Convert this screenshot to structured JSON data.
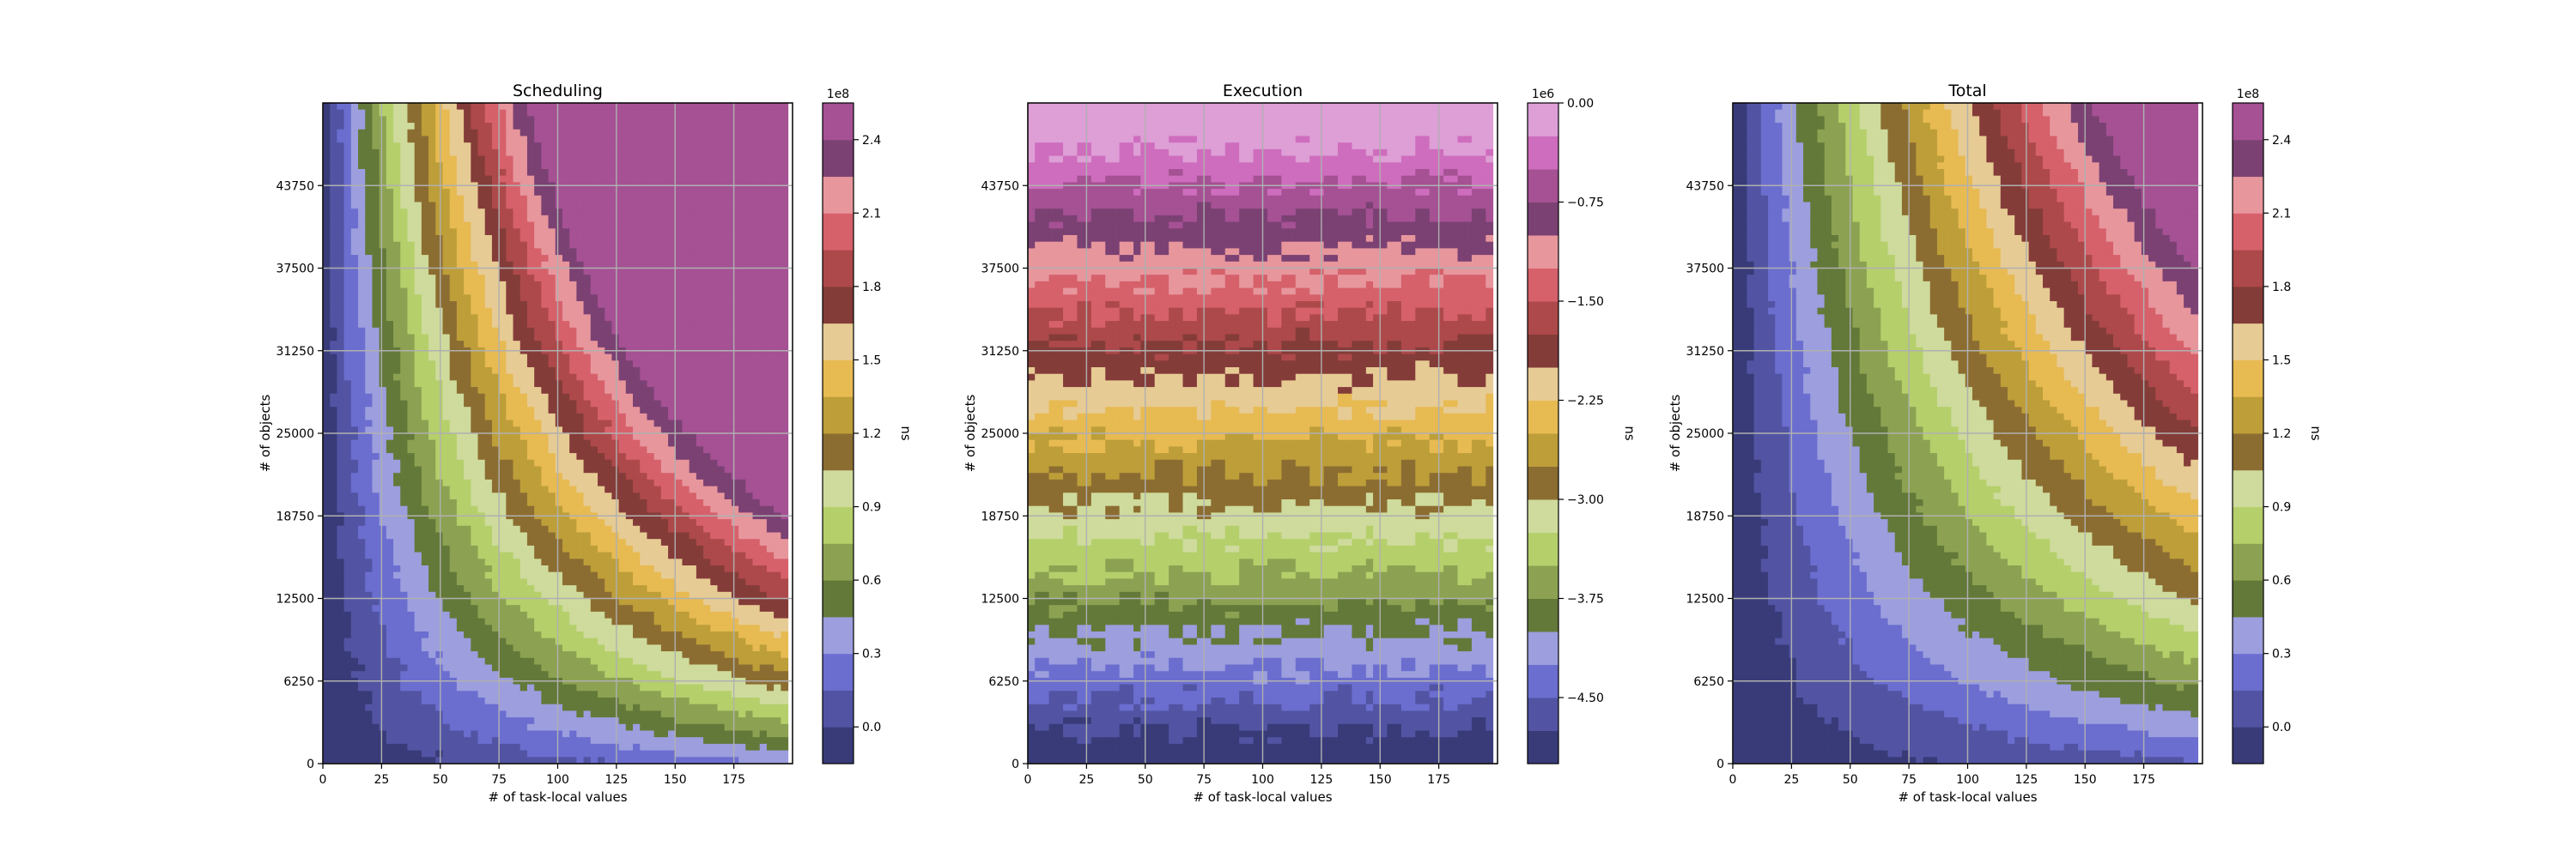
{
  "chart_data": [
    {
      "type": "heatmap",
      "subtype": "filled-contour",
      "title": "Scheduling",
      "xlabel": "# of task-local values",
      "ylabel": "# of objects",
      "xlim": [
        0,
        200
      ],
      "ylim": [
        0,
        50000
      ],
      "x_ticks": [
        0,
        25,
        50,
        75,
        100,
        125,
        150,
        175
      ],
      "x_tick_labels": [
        "0",
        "25",
        "50",
        "75",
        "100",
        "125",
        "150",
        "175"
      ],
      "y_ticks": [
        0,
        6250,
        12500,
        18750,
        25000,
        31250,
        37500,
        43750
      ],
      "y_tick_labels": [
        "0",
        "6250",
        "12500",
        "18750",
        "25000",
        "31250",
        "37500",
        "43750"
      ],
      "grid": true,
      "pattern": "diagonal",
      "colorbar": {
        "label": "ns",
        "offset_text": "1e8",
        "levels": [
          -0.15,
          0,
          0.15,
          0.3,
          0.45,
          0.6,
          0.75,
          0.9,
          1.05,
          1.2,
          1.35,
          1.5,
          1.65,
          1.8,
          1.95,
          2.1,
          2.25,
          2.4,
          2.55
        ],
        "ticks": [
          0.0,
          0.3,
          0.6,
          0.9,
          1.2,
          1.5,
          1.8,
          2.1,
          2.4
        ],
        "tick_labels": [
          "0.0",
          "0.3",
          "0.6",
          "0.9",
          "1.2",
          "1.5",
          "1.8",
          "2.1",
          "2.4"
        ]
      }
    },
    {
      "type": "heatmap",
      "subtype": "filled-contour",
      "title": "Execution",
      "xlabel": "# of task-local values",
      "ylabel": "# of objects",
      "xlim": [
        0,
        200
      ],
      "ylim": [
        0,
        50000
      ],
      "x_ticks": [
        0,
        25,
        50,
        75,
        100,
        125,
        150,
        175
      ],
      "x_tick_labels": [
        "0",
        "25",
        "50",
        "75",
        "100",
        "125",
        "150",
        "175"
      ],
      "y_ticks": [
        0,
        6250,
        12500,
        18750,
        25000,
        31250,
        37500,
        43750
      ],
      "y_tick_labels": [
        "0",
        "6250",
        "12500",
        "18750",
        "25000",
        "31250",
        "37500",
        "43750"
      ],
      "grid": true,
      "pattern": "horizontal",
      "colorbar": {
        "label": "ns",
        "offset_text": "1e6",
        "levels": [
          -5.0,
          -4.75,
          -4.5,
          -4.25,
          -4.0,
          -3.75,
          -3.5,
          -3.25,
          -3.0,
          -2.75,
          -2.5,
          -2.25,
          -2.0,
          -1.75,
          -1.5,
          -1.25,
          -1.0,
          -0.75,
          -0.5,
          -0.25,
          0.0
        ],
        "ticks": [
          -4.5,
          -3.75,
          -3.0,
          -2.25,
          -1.5,
          -0.75,
          0.0
        ],
        "tick_labels": [
          "−4.50",
          "−3.75",
          "−3.00",
          "−2.25",
          "−1.50",
          "−0.75",
          "0.00"
        ]
      }
    },
    {
      "type": "heatmap",
      "subtype": "filled-contour",
      "title": "Total",
      "xlabel": "# of task-local values",
      "ylabel": "# of objects",
      "xlim": [
        0,
        200
      ],
      "ylim": [
        0,
        50000
      ],
      "x_ticks": [
        0,
        25,
        50,
        75,
        100,
        125,
        150,
        175
      ],
      "x_tick_labels": [
        "0",
        "25",
        "50",
        "75",
        "100",
        "125",
        "150",
        "175"
      ],
      "y_ticks": [
        0,
        6250,
        12500,
        18750,
        25000,
        31250,
        37500,
        43750
      ],
      "y_tick_labels": [
        "0",
        "6250",
        "12500",
        "18750",
        "25000",
        "31250",
        "37500",
        "43750"
      ],
      "grid": true,
      "pattern": "diagonal",
      "colorbar": {
        "label": "ns",
        "offset_text": "1e8",
        "levels": [
          -0.15,
          0,
          0.15,
          0.3,
          0.45,
          0.6,
          0.75,
          0.9,
          1.05,
          1.2,
          1.35,
          1.5,
          1.65,
          1.8,
          1.95,
          2.1,
          2.25,
          2.4,
          2.55
        ],
        "ticks": [
          0.0,
          0.3,
          0.6,
          0.9,
          1.2,
          1.5,
          1.8,
          2.1,
          2.4
        ],
        "tick_labels": [
          "0.0",
          "0.3",
          "0.6",
          "0.9",
          "1.2",
          "1.5",
          "1.8",
          "2.1",
          "2.4"
        ]
      }
    }
  ],
  "colormap": {
    "name": "tab20b",
    "colors": [
      "#393b79",
      "#5254a3",
      "#6b6ecf",
      "#9c9ede",
      "#637939",
      "#8ca252",
      "#b5cf6b",
      "#cedb9c",
      "#8c6d31",
      "#bd9e39",
      "#e7ba52",
      "#e7cb94",
      "#843c39",
      "#ad494a",
      "#d6616b",
      "#e7969c",
      "#7b4173",
      "#a55194",
      "#ce6dbd",
      "#de9ed6"
    ]
  }
}
